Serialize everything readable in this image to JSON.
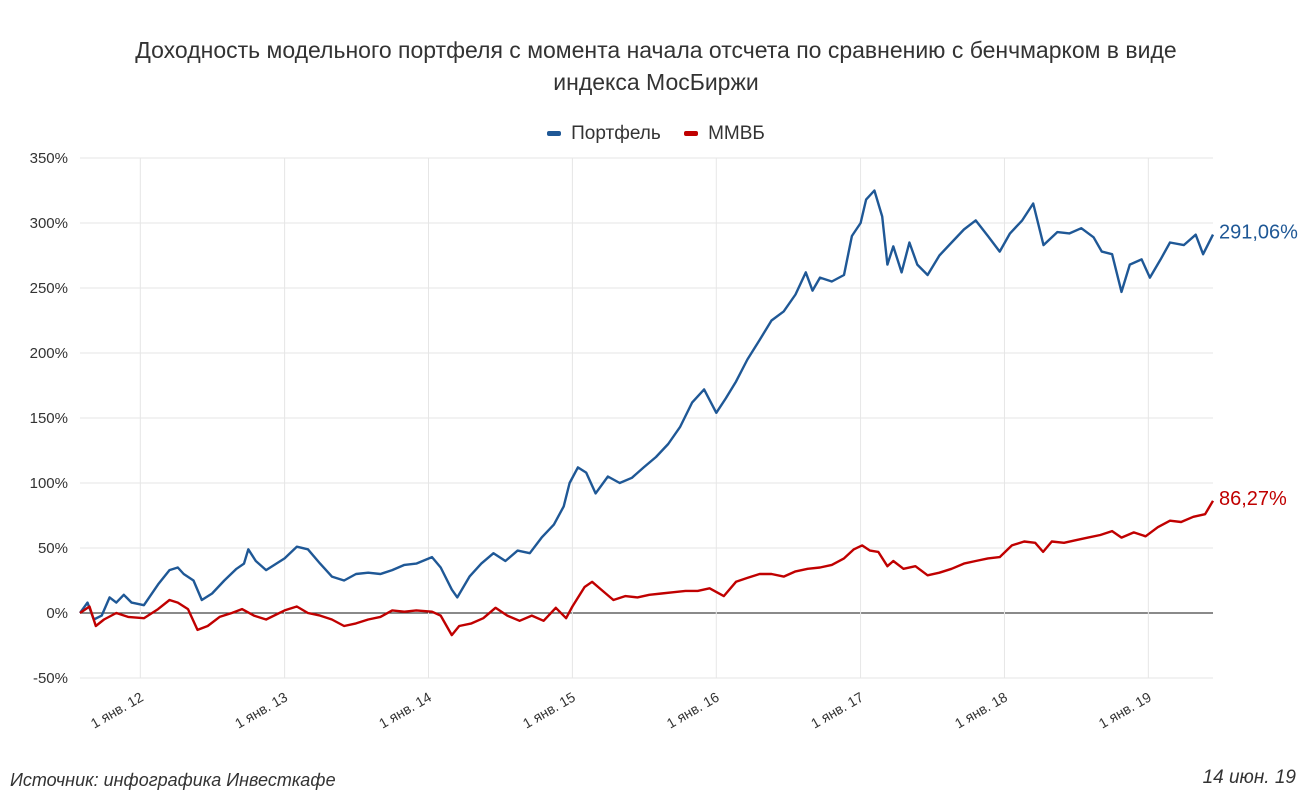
{
  "header": {
    "title_line1": "Доходность модельного портфеля с момента начала отсчета по сравнению с бенчмарком в виде",
    "title_line2": "индекса МосБиржи"
  },
  "footer": {
    "source": "Источник: инфографика Инвесткафе",
    "date": "14 июн. 19"
  },
  "chart_data": {
    "type": "line",
    "title": "Доходность модельного портфеля с момента начала отсчета по сравнению с бенчмарком в виде индекса МосБиржи",
    "legend_position": "top-center",
    "grid": true,
    "ylim": [
      -50,
      350
    ],
    "y_ticks": [
      -50,
      0,
      50,
      100,
      150,
      200,
      250,
      300,
      350
    ],
    "y_tick_labels": [
      "-50%",
      "0%",
      "50%",
      "100%",
      "150%",
      "200%",
      "250%",
      "300%",
      "350%"
    ],
    "xlim": [
      "2011-08-01",
      "2019-06-14"
    ],
    "x_ticks": [
      "2012-01-01",
      "2013-01-01",
      "2014-01-01",
      "2015-01-01",
      "2016-01-01",
      "2017-01-01",
      "2018-01-01",
      "2019-01-01"
    ],
    "x_tick_labels": [
      "1 янв. 12",
      "1 янв. 13",
      "1 янв. 14",
      "1 янв. 15",
      "1 янв. 16",
      "1 янв. 17",
      "1 янв. 18",
      "1 янв. 19"
    ],
    "series": [
      {
        "name": "Портфель",
        "color": "#1f5896",
        "end_label": "291,06%",
        "points": [
          [
            "2011-08-01",
            0
          ],
          [
            "2011-08-20",
            8
          ],
          [
            "2011-09-05",
            -5
          ],
          [
            "2011-09-25",
            -2
          ],
          [
            "2011-10-15",
            12
          ],
          [
            "2011-11-01",
            8
          ],
          [
            "2011-11-20",
            14
          ],
          [
            "2011-12-10",
            8
          ],
          [
            "2012-01-10",
            6
          ],
          [
            "2012-02-15",
            22
          ],
          [
            "2012-03-15",
            33
          ],
          [
            "2012-04-05",
            35
          ],
          [
            "2012-04-20",
            30
          ],
          [
            "2012-05-15",
            25
          ],
          [
            "2012-06-05",
            10
          ],
          [
            "2012-07-01",
            15
          ],
          [
            "2012-08-01",
            25
          ],
          [
            "2012-09-01",
            34
          ],
          [
            "2012-09-20",
            38
          ],
          [
            "2012-10-01",
            49
          ],
          [
            "2012-10-20",
            40
          ],
          [
            "2012-11-15",
            33
          ],
          [
            "2013-01-01",
            42
          ],
          [
            "2013-02-01",
            51
          ],
          [
            "2013-03-01",
            49
          ],
          [
            "2013-04-01",
            38
          ],
          [
            "2013-05-01",
            28
          ],
          [
            "2013-06-01",
            25
          ],
          [
            "2013-07-01",
            30
          ],
          [
            "2013-08-01",
            31
          ],
          [
            "2013-09-01",
            30
          ],
          [
            "2013-10-01",
            33
          ],
          [
            "2013-11-01",
            37
          ],
          [
            "2013-12-01",
            38
          ],
          [
            "2014-01-10",
            43
          ],
          [
            "2014-02-01",
            35
          ],
          [
            "2014-03-01",
            18
          ],
          [
            "2014-03-15",
            12
          ],
          [
            "2014-04-15",
            28
          ],
          [
            "2014-05-15",
            38
          ],
          [
            "2014-06-15",
            46
          ],
          [
            "2014-07-15",
            40
          ],
          [
            "2014-08-15",
            48
          ],
          [
            "2014-09-15",
            46
          ],
          [
            "2014-10-15",
            58
          ],
          [
            "2014-11-15",
            68
          ],
          [
            "2014-12-10",
            82
          ],
          [
            "2014-12-25",
            100
          ],
          [
            "2015-01-15",
            112
          ],
          [
            "2015-02-05",
            108
          ],
          [
            "2015-03-01",
            92
          ],
          [
            "2015-04-01",
            105
          ],
          [
            "2015-05-01",
            100
          ],
          [
            "2015-06-01",
            104
          ],
          [
            "2015-07-01",
            112
          ],
          [
            "2015-08-01",
            120
          ],
          [
            "2015-09-01",
            130
          ],
          [
            "2015-10-01",
            143
          ],
          [
            "2015-11-01",
            162
          ],
          [
            "2015-12-01",
            172
          ],
          [
            "2016-01-01",
            154
          ],
          [
            "2016-01-25",
            165
          ],
          [
            "2016-02-20",
            178
          ],
          [
            "2016-03-20",
            195
          ],
          [
            "2016-04-20",
            210
          ],
          [
            "2016-05-20",
            225
          ],
          [
            "2016-06-20",
            232
          ],
          [
            "2016-07-20",
            245
          ],
          [
            "2016-08-15",
            262
          ],
          [
            "2016-09-01",
            248
          ],
          [
            "2016-09-20",
            258
          ],
          [
            "2016-10-20",
            255
          ],
          [
            "2016-11-20",
            260
          ],
          [
            "2016-12-10",
            290
          ],
          [
            "2017-01-01",
            300
          ],
          [
            "2017-01-15",
            318
          ],
          [
            "2017-02-05",
            325
          ],
          [
            "2017-02-25",
            305
          ],
          [
            "2017-03-10",
            268
          ],
          [
            "2017-03-25",
            282
          ],
          [
            "2017-04-15",
            262
          ],
          [
            "2017-05-05",
            285
          ],
          [
            "2017-05-25",
            268
          ],
          [
            "2017-06-20",
            260
          ],
          [
            "2017-07-20",
            275
          ],
          [
            "2017-08-20",
            285
          ],
          [
            "2017-09-20",
            295
          ],
          [
            "2017-10-20",
            302
          ],
          [
            "2017-11-20",
            290
          ],
          [
            "2017-12-20",
            278
          ],
          [
            "2018-01-15",
            292
          ],
          [
            "2018-02-15",
            302
          ],
          [
            "2018-03-15",
            315
          ],
          [
            "2018-04-10",
            283
          ],
          [
            "2018-05-15",
            293
          ],
          [
            "2018-06-15",
            292
          ],
          [
            "2018-07-15",
            296
          ],
          [
            "2018-08-15",
            289
          ],
          [
            "2018-09-05",
            278
          ],
          [
            "2018-10-01",
            276
          ],
          [
            "2018-10-25",
            247
          ],
          [
            "2018-11-15",
            268
          ],
          [
            "2018-12-15",
            272
          ],
          [
            "2019-01-05",
            258
          ],
          [
            "2019-02-01",
            272
          ],
          [
            "2019-02-25",
            285
          ],
          [
            "2019-04-01",
            283
          ],
          [
            "2019-05-01",
            291
          ],
          [
            "2019-05-20",
            276
          ],
          [
            "2019-06-14",
            291.06
          ]
        ]
      },
      {
        "name": "ММВБ",
        "color": "#c00000",
        "end_label": "86,27%",
        "points": [
          [
            "2011-08-01",
            0
          ],
          [
            "2011-08-25",
            5
          ],
          [
            "2011-09-10",
            -10
          ],
          [
            "2011-10-01",
            -5
          ],
          [
            "2011-11-01",
            0
          ],
          [
            "2011-12-01",
            -3
          ],
          [
            "2012-01-10",
            -4
          ],
          [
            "2012-02-15",
            3
          ],
          [
            "2012-03-15",
            10
          ],
          [
            "2012-04-05",
            8
          ],
          [
            "2012-05-01",
            3
          ],
          [
            "2012-05-25",
            -13
          ],
          [
            "2012-06-20",
            -10
          ],
          [
            "2012-07-20",
            -3
          ],
          [
            "2012-08-20",
            0
          ],
          [
            "2012-09-15",
            3
          ],
          [
            "2012-10-15",
            -2
          ],
          [
            "2012-11-15",
            -5
          ],
          [
            "2013-01-01",
            2
          ],
          [
            "2013-02-01",
            5
          ],
          [
            "2013-03-01",
            0
          ],
          [
            "2013-04-01",
            -2
          ],
          [
            "2013-05-01",
            -5
          ],
          [
            "2013-06-01",
            -10
          ],
          [
            "2013-07-01",
            -8
          ],
          [
            "2013-08-01",
            -5
          ],
          [
            "2013-09-01",
            -3
          ],
          [
            "2013-10-01",
            2
          ],
          [
            "2013-11-01",
            1
          ],
          [
            "2013-12-01",
            2
          ],
          [
            "2014-01-10",
            1
          ],
          [
            "2014-02-01",
            -2
          ],
          [
            "2014-03-01",
            -17
          ],
          [
            "2014-03-20",
            -10
          ],
          [
            "2014-04-20",
            -8
          ],
          [
            "2014-05-20",
            -4
          ],
          [
            "2014-06-20",
            4
          ],
          [
            "2014-07-20",
            -2
          ],
          [
            "2014-08-20",
            -6
          ],
          [
            "2014-09-20",
            -2
          ],
          [
            "2014-10-20",
            -6
          ],
          [
            "2014-11-20",
            4
          ],
          [
            "2014-12-16",
            -4
          ],
          [
            "2015-01-01",
            5
          ],
          [
            "2015-02-01",
            20
          ],
          [
            "2015-02-20",
            24
          ],
          [
            "2015-03-15",
            18
          ],
          [
            "2015-04-15",
            10
          ],
          [
            "2015-05-15",
            13
          ],
          [
            "2015-06-15",
            12
          ],
          [
            "2015-07-15",
            14
          ],
          [
            "2015-08-15",
            15
          ],
          [
            "2015-09-15",
            16
          ],
          [
            "2015-10-15",
            17
          ],
          [
            "2015-11-15",
            17
          ],
          [
            "2015-12-15",
            19
          ],
          [
            "2016-01-20",
            13
          ],
          [
            "2016-02-20",
            24
          ],
          [
            "2016-03-20",
            27
          ],
          [
            "2016-04-20",
            30
          ],
          [
            "2016-05-20",
            30
          ],
          [
            "2016-06-20",
            28
          ],
          [
            "2016-07-20",
            32
          ],
          [
            "2016-08-20",
            34
          ],
          [
            "2016-09-20",
            35
          ],
          [
            "2016-10-20",
            37
          ],
          [
            "2016-11-20",
            42
          ],
          [
            "2016-12-15",
            49
          ],
          [
            "2017-01-05",
            52
          ],
          [
            "2017-01-25",
            48
          ],
          [
            "2017-02-15",
            47
          ],
          [
            "2017-03-10",
            36
          ],
          [
            "2017-03-25",
            40
          ],
          [
            "2017-04-20",
            34
          ],
          [
            "2017-05-20",
            36
          ],
          [
            "2017-06-20",
            29
          ],
          [
            "2017-07-20",
            31
          ],
          [
            "2017-08-20",
            34
          ],
          [
            "2017-09-20",
            38
          ],
          [
            "2017-10-20",
            40
          ],
          [
            "2017-11-20",
            42
          ],
          [
            "2017-12-20",
            43
          ],
          [
            "2018-01-20",
            52
          ],
          [
            "2018-02-20",
            55
          ],
          [
            "2018-03-20",
            54
          ],
          [
            "2018-04-09",
            47
          ],
          [
            "2018-05-01",
            55
          ],
          [
            "2018-06-01",
            54
          ],
          [
            "2018-07-01",
            56
          ],
          [
            "2018-08-01",
            58
          ],
          [
            "2018-09-01",
            60
          ],
          [
            "2018-10-01",
            63
          ],
          [
            "2018-10-25",
            58
          ],
          [
            "2018-11-25",
            62
          ],
          [
            "2018-12-25",
            59
          ],
          [
            "2019-01-25",
            66
          ],
          [
            "2019-02-25",
            71
          ],
          [
            "2019-03-25",
            70
          ],
          [
            "2019-04-25",
            74
          ],
          [
            "2019-05-25",
            76
          ],
          [
            "2019-06-14",
            86.27
          ]
        ]
      }
    ]
  }
}
